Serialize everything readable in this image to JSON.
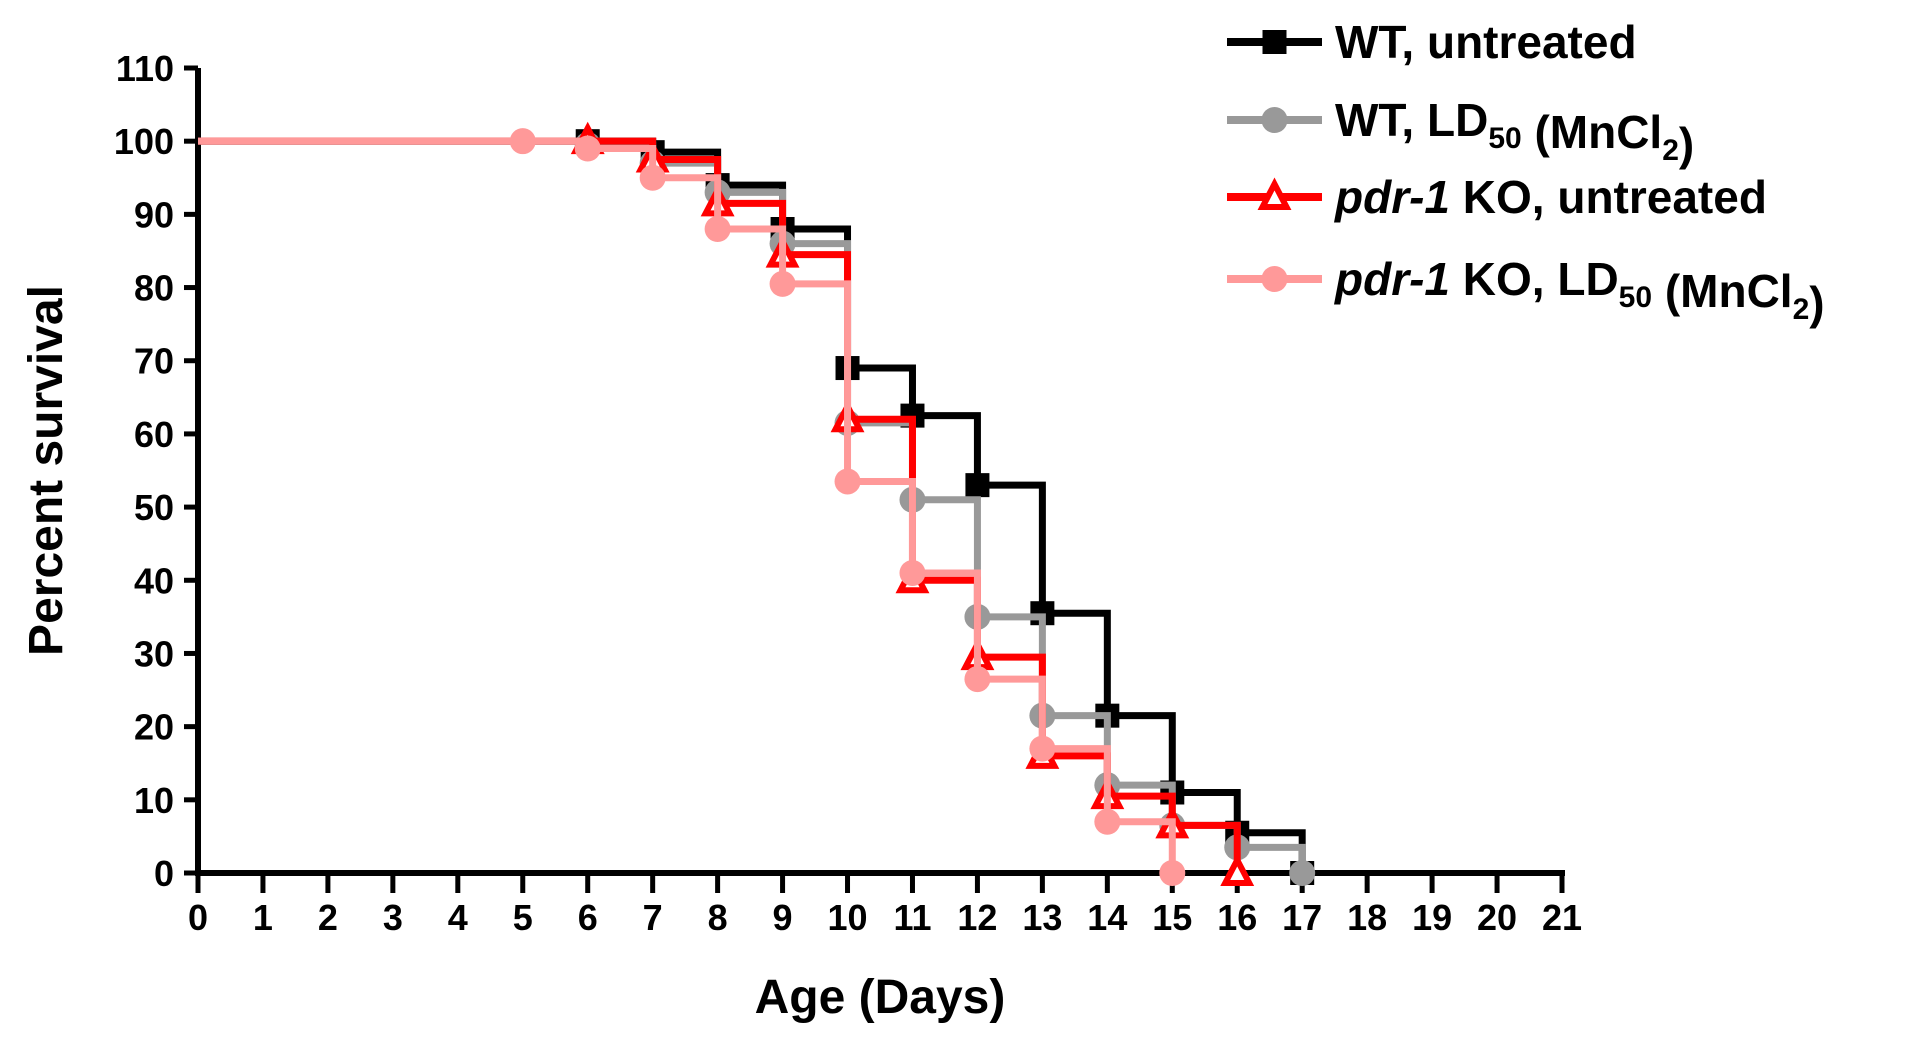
{
  "chart_data": {
    "type": "line",
    "subtype": "kaplan-meier step survival curve",
    "xlabel": "Age (Days)",
    "ylabel": "Percent survival",
    "xlim": [
      0,
      21
    ],
    "ylim": [
      0,
      110
    ],
    "xticks": [
      0,
      1,
      2,
      3,
      4,
      5,
      6,
      7,
      8,
      9,
      10,
      11,
      12,
      13,
      14,
      15,
      16,
      17,
      18,
      19,
      20,
      21
    ],
    "yticks": [
      0,
      10,
      20,
      30,
      40,
      50,
      60,
      70,
      80,
      90,
      100,
      110
    ],
    "grid": false,
    "legend_position": "top-right",
    "series": [
      {
        "name": "WT, untreated",
        "legend": {
          "prefix": "WT, untreated",
          "italic": "",
          "sub_base": "",
          "sub": "",
          "mid": "",
          "sub2": "",
          "suffix": ""
        },
        "color": "#000000",
        "marker": "square",
        "x": [
          0,
          6,
          7,
          8,
          9,
          10,
          11,
          12,
          13,
          14,
          15,
          16,
          17
        ],
        "y": [
          100,
          100,
          98.5,
          94,
          88,
          69,
          62.5,
          53,
          35.5,
          21.5,
          11,
          5.5,
          0
        ]
      },
      {
        "name": "WT, LD50 (MnCl2)",
        "legend": {
          "prefix": "WT, ",
          "italic": "",
          "sub_base": "LD",
          "sub": "50",
          "mid": " (MnCl",
          "sub2": "2",
          "suffix": ")"
        },
        "color": "#999999",
        "marker": "circle",
        "x": [
          0,
          6,
          7,
          8,
          9,
          10,
          11,
          12,
          13,
          14,
          15,
          16,
          17
        ],
        "y": [
          100,
          99.5,
          97,
          93,
          86,
          61.5,
          51,
          35,
          21.5,
          12,
          6.5,
          3.5,
          0
        ]
      },
      {
        "name": "pdr-1 KO, untreated",
        "legend": {
          "prefix": "",
          "italic": "pdr-1",
          "sub_base": " KO, untreated",
          "sub": "",
          "mid": "",
          "sub2": "",
          "suffix": ""
        },
        "color": "#ff0000",
        "marker": "triangle-open",
        "x": [
          0,
          6,
          7,
          8,
          9,
          10,
          11,
          12,
          13,
          14,
          15,
          16
        ],
        "y": [
          100,
          100,
          97.5,
          91.5,
          84.5,
          62,
          40,
          29.5,
          16,
          10.5,
          6.5,
          0
        ]
      },
      {
        "name": "pdr-1 KO, LD50 (MnCl2)",
        "legend": {
          "prefix": "",
          "italic": "pdr-1",
          "sub_base": " KO, LD",
          "sub": "50",
          "mid": " (MnCl",
          "sub2": "2",
          "suffix": ")"
        },
        "color": "#ff9999",
        "marker": "circle",
        "x": [
          0,
          5,
          6,
          7,
          8,
          9,
          10,
          11,
          12,
          13,
          14,
          15
        ],
        "y": [
          100,
          100,
          99,
          95,
          88,
          80.5,
          53.5,
          41,
          26.5,
          17,
          7,
          0
        ]
      }
    ]
  }
}
